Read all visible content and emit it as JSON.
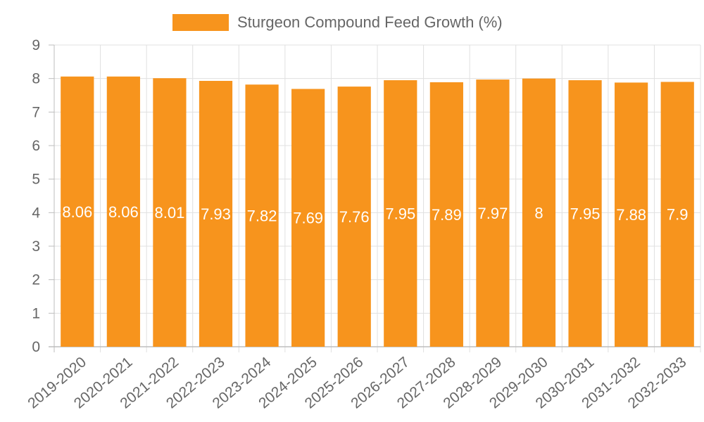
{
  "chart_data": {
    "type": "bar",
    "title": "",
    "categories": [
      "2019-2020",
      "2020-2021",
      "2021-2022",
      "2022-2023",
      "2023-2024",
      "2024-2025",
      "2025-2026",
      "2026-2027",
      "2027-2028",
      "2028-2029",
      "2029-2030",
      "2030-2031",
      "2031-2032",
      "2032-2033"
    ],
    "series": [
      {
        "name": "Sturgeon Compound Feed Growth (%)",
        "values": [
          8.06,
          8.06,
          8.01,
          7.93,
          7.82,
          7.69,
          7.76,
          7.95,
          7.89,
          7.97,
          8,
          7.95,
          7.88,
          7.9
        ],
        "color": "#F7941D"
      }
    ],
    "data_labels": [
      "8.06",
      "8.06",
      "8.01",
      "7.93",
      "7.82",
      "7.69",
      "7.76",
      "7.95",
      "7.89",
      "7.97",
      "8",
      "7.95",
      "7.88",
      "7.9"
    ],
    "y_ticks": [
      "0",
      "1",
      "2",
      "3",
      "4",
      "5",
      "6",
      "7",
      "8",
      "9"
    ],
    "ylim": [
      0,
      9
    ],
    "xlabel": "",
    "ylabel": "",
    "grid": true,
    "legend_position": "top-center"
  },
  "colors": {
    "bar": "#F7941D",
    "grid": "#e0e0e0",
    "axis": "#bdbdbd",
    "text": "#666666",
    "data_label": "#ffffff"
  }
}
